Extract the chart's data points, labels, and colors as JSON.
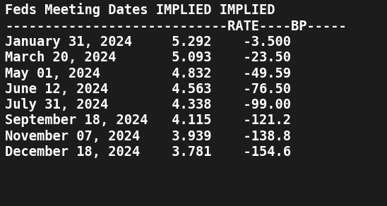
{
  "background_color": "#1c1c1c",
  "text_color": "#ffffff",
  "full_text": "Feds Meeting Dates IMPLIED IMPLIED\n----------------------------RATE----BP-----\nJanuary 31, 2024     5.292    -3.500\nMarch 20, 2024       5.093    -23.50\nMay 01, 2024         4.832    -49.59\nJune 12, 2024        4.563    -76.50\nJuly 31, 2024        4.338    -99.00\nSeptember 18, 2024   4.115    -121.2\nNovember 07, 2024    3.939    -138.8\nDecember 18, 2024    3.781    -154.6",
  "font_size": 13.5,
  "figsize": [
    5.48,
    2.92
  ],
  "dpi": 100
}
